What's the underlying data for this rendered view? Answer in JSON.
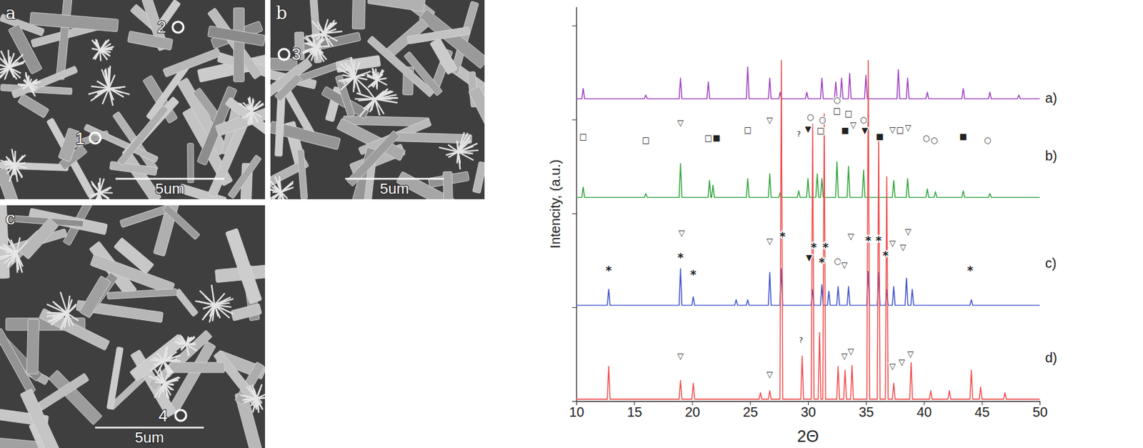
{
  "chart_data": {
    "type": "line",
    "x_label": "2Θ",
    "y_label": "Intencity, (a.u.)",
    "xlim": [
      10,
      50
    ],
    "xticks": [
      10,
      15,
      20,
      25,
      30,
      35,
      40,
      45,
      50
    ],
    "ylim": [
      0,
      4.2
    ],
    "yticks": [
      0,
      1,
      2,
      3,
      4
    ],
    "tick_labels": "x",
    "grid": false,
    "series": [
      {
        "name": "a)",
        "color": "#9c3cc0",
        "x": [
          10,
          10.48,
          10.6,
          10.72,
          15.88,
          16.0,
          16.12,
          18.88,
          19.0,
          19.12,
          21.28,
          21.4,
          21.52,
          24.68,
          24.8,
          24.92,
          26.58,
          26.7,
          26.82,
          27.48,
          27.6,
          27.72,
          29.78,
          29.9,
          30.02,
          31.08,
          31.2,
          31.32,
          32.28,
          32.4,
          32.52,
          32.78,
          32.9,
          33.02,
          33.48,
          33.6,
          33.72,
          34.88,
          35.0,
          35.12,
          37.68,
          37.8,
          37.92,
          38.48,
          38.6,
          38.72,
          40.18,
          40.3,
          40.42,
          43.28,
          43.4,
          43.52,
          45.58,
          45.7,
          45.82,
          48.08,
          48.2,
          48.32,
          50
        ],
        "values": [
          3.22,
          3.22,
          3.33,
          3.22,
          3.22,
          3.26,
          3.22,
          3.22,
          3.44,
          3.22,
          3.22,
          3.4,
          3.22,
          3.22,
          3.56,
          3.22,
          3.22,
          3.44,
          3.22,
          3.22,
          3.29,
          3.22,
          3.22,
          3.29,
          3.22,
          3.22,
          3.44,
          3.22,
          3.22,
          3.4,
          3.22,
          3.22,
          3.44,
          3.22,
          3.22,
          3.49,
          3.22,
          3.22,
          3.47,
          3.22,
          3.22,
          3.53,
          3.22,
          3.22,
          3.44,
          3.22,
          3.22,
          3.29,
          3.22,
          3.22,
          3.33,
          3.22,
          3.22,
          3.29,
          3.22,
          3.22,
          3.26,
          3.22,
          3.22
        ]
      },
      {
        "name": "b)",
        "color": "#2ea33a",
        "x": [
          10,
          10.48,
          10.6,
          10.72,
          15.88,
          16.0,
          16.12,
          18.88,
          19.0,
          19.12,
          21.38,
          21.5,
          21.62,
          21.68,
          21.8,
          21.92,
          24.68,
          24.8,
          24.92,
          26.58,
          26.7,
          26.82,
          27.48,
          27.6,
          27.72,
          29.08,
          29.2,
          29.32,
          29.88,
          30.0,
          30.12,
          30.68,
          30.8,
          30.92,
          31.08,
          31.2,
          31.32,
          32.38,
          32.5,
          32.62,
          33.38,
          33.5,
          33.62,
          34.68,
          34.8,
          34.92,
          37.28,
          37.4,
          37.52,
          38.48,
          38.6,
          38.72,
          40.18,
          40.3,
          40.42,
          40.88,
          41.0,
          41.12,
          43.28,
          43.4,
          43.52,
          45.58,
          45.7,
          45.82,
          50
        ],
        "values": [
          2.17,
          2.17,
          2.28,
          2.17,
          2.17,
          2.21,
          2.17,
          2.17,
          2.53,
          2.17,
          2.17,
          2.35,
          2.17,
          2.17,
          2.3,
          2.17,
          2.17,
          2.37,
          2.17,
          2.17,
          2.42,
          2.17,
          2.17,
          2.22,
          2.17,
          2.17,
          2.24,
          2.17,
          2.17,
          2.37,
          2.17,
          2.17,
          2.42,
          2.17,
          2.17,
          2.37,
          2.17,
          2.17,
          2.55,
          2.17,
          2.17,
          2.5,
          2.17,
          2.17,
          2.46,
          2.17,
          2.17,
          2.35,
          2.17,
          2.17,
          2.37,
          2.17,
          2.17,
          2.26,
          2.17,
          2.17,
          2.23,
          2.17,
          2.17,
          2.24,
          2.17,
          2.17,
          2.21,
          2.17,
          2.17
        ]
      },
      {
        "name": "c)",
        "color": "#3a4fcc",
        "x": [
          10,
          12.68,
          12.8,
          12.92,
          18.88,
          19.0,
          19.12,
          19.98,
          20.1,
          20.22,
          23.68,
          23.8,
          23.92,
          24.68,
          24.8,
          24.92,
          26.58,
          26.7,
          26.82,
          27.58,
          27.7,
          27.82,
          30.28,
          30.4,
          30.52,
          31.08,
          31.2,
          31.32,
          31.68,
          31.8,
          31.92,
          32.48,
          32.6,
          32.72,
          33.38,
          33.5,
          33.62,
          35.08,
          35.2,
          35.32,
          35.98,
          36.1,
          36.22,
          36.68,
          36.8,
          36.92,
          37.28,
          37.4,
          37.52,
          38.38,
          38.5,
          38.62,
          38.88,
          39.0,
          39.12,
          43.98,
          44.1,
          44.22,
          50
        ],
        "values": [
          1.02,
          1.02,
          1.19,
          1.02,
          1.02,
          1.41,
          1.02,
          1.02,
          1.11,
          1.02,
          1.02,
          1.08,
          1.02,
          1.02,
          1.08,
          1.02,
          1.02,
          1.37,
          1.02,
          1.02,
          1.41,
          1.02,
          1.02,
          1.19,
          1.02,
          1.02,
          1.24,
          1.02,
          1.02,
          1.17,
          1.02,
          1.02,
          1.22,
          1.02,
          1.02,
          1.22,
          1.02,
          1.02,
          1.38,
          1.02,
          1.02,
          1.37,
          1.02,
          1.02,
          1.19,
          1.02,
          1.02,
          1.22,
          1.02,
          1.02,
          1.31,
          1.02,
          1.02,
          1.19,
          1.02,
          1.02,
          1.08,
          1.02,
          1.02
        ]
      },
      {
        "name": "d)",
        "color": "#f04848",
        "x": [
          10,
          12.68,
          12.8,
          12.92,
          18.88,
          19.0,
          19.12,
          19.98,
          20.1,
          20.22,
          25.78,
          25.9,
          26.02,
          26.58,
          26.7,
          26.82,
          27.58,
          27.7,
          27.82,
          29.38,
          29.5,
          29.62,
          30.28,
          30.4,
          30.52,
          30.88,
          31.0,
          31.12,
          31.28,
          31.4,
          31.52,
          32.48,
          32.6,
          32.72,
          33.08,
          33.2,
          33.32,
          33.68,
          33.8,
          33.92,
          35.08,
          35.2,
          35.32,
          35.98,
          36.1,
          36.22,
          36.68,
          36.8,
          36.92,
          37.28,
          37.4,
          37.52,
          38.78,
          38.9,
          39.02,
          40.48,
          40.6,
          40.72,
          42.08,
          42.2,
          42.32,
          43.98,
          44.1,
          44.22,
          44.78,
          44.9,
          45.02,
          46.88,
          47.0,
          47.12,
          50
        ],
        "values": [
          0.02,
          0.02,
          0.37,
          0.02,
          0.02,
          0.22,
          0.02,
          0.02,
          0.19,
          0.02,
          0.02,
          0.09,
          0.02,
          0.02,
          0.11,
          0.02,
          0.02,
          3.63,
          0.02,
          0.02,
          0.48,
          0.02,
          0.02,
          2.95,
          0.02,
          0.02,
          0.73,
          0.02,
          0.02,
          3.06,
          0.02,
          0.02,
          0.37,
          0.02,
          0.02,
          0.33,
          0.02,
          0.02,
          0.38,
          0.02,
          0.02,
          3.63,
          0.02,
          0.02,
          2.84,
          0.02,
          0.02,
          2.39,
          0.02,
          0.02,
          0.19,
          0.02,
          0.02,
          0.41,
          0.02,
          0.02,
          0.11,
          0.02,
          0.02,
          0.11,
          0.02,
          0.02,
          0.33,
          0.02,
          0.02,
          0.15,
          0.02,
          0.02,
          0.09,
          0.02,
          0.02
        ]
      }
    ],
    "annotations": [
      {
        "text": "□",
        "x": 10.6,
        "y": 2.82
      },
      {
        "text": "□",
        "x": 16.0,
        "y": 2.78
      },
      {
        "text": "▽",
        "x": 19.0,
        "y": 2.96
      },
      {
        "text": "□",
        "x": 21.4,
        "y": 2.8
      },
      {
        "text": "■",
        "x": 22.1,
        "y": 2.8
      },
      {
        "text": "□",
        "x": 24.8,
        "y": 2.89
      },
      {
        "text": "▽",
        "x": 26.7,
        "y": 2.99
      },
      {
        "text": "?",
        "x": 29.2,
        "y": 2.84
      },
      {
        "text": "▼",
        "x": 30.0,
        "y": 2.9
      },
      {
        "text": "○",
        "x": 30.2,
        "y": 3.03
      },
      {
        "text": "□",
        "x": 31.1,
        "y": 2.88
      },
      {
        "text": "○",
        "x": 31.25,
        "y": 3.0
      },
      {
        "text": "□",
        "x": 32.5,
        "y": 3.09
      },
      {
        "text": "○",
        "x": 32.5,
        "y": 3.21
      },
      {
        "text": "■",
        "x": 33.2,
        "y": 2.88
      },
      {
        "text": "□",
        "x": 33.5,
        "y": 3.06
      },
      {
        "text": "▽",
        "x": 33.9,
        "y": 2.94
      },
      {
        "text": "▼",
        "x": 34.9,
        "y": 2.88
      },
      {
        "text": "○",
        "x": 34.8,
        "y": 3.0
      },
      {
        "text": "■",
        "x": 36.2,
        "y": 2.82
      },
      {
        "text": "▽",
        "x": 37.3,
        "y": 2.89
      },
      {
        "text": "□",
        "x": 37.95,
        "y": 2.89
      },
      {
        "text": "▽",
        "x": 38.65,
        "y": 2.91
      },
      {
        "text": "○",
        "x": 40.2,
        "y": 2.8
      },
      {
        "text": "○",
        "x": 40.9,
        "y": 2.78
      },
      {
        "text": "■",
        "x": 43.4,
        "y": 2.82
      },
      {
        "text": "○",
        "x": 45.5,
        "y": 2.78
      },
      {
        "text": "*",
        "x": 12.8,
        "y": 1.39
      },
      {
        "text": "*",
        "x": 19.0,
        "y": 1.53
      },
      {
        "text": "▽",
        "x": 19.1,
        "y": 1.79
      },
      {
        "text": "*",
        "x": 20.1,
        "y": 1.35
      },
      {
        "text": "▽",
        "x": 26.7,
        "y": 1.7
      },
      {
        "text": "*",
        "x": 27.8,
        "y": 1.75
      },
      {
        "text": "▼",
        "x": 30.1,
        "y": 1.53
      },
      {
        "text": "*",
        "x": 30.5,
        "y": 1.64
      },
      {
        "text": "*",
        "x": 31.2,
        "y": 1.48
      },
      {
        "text": "*",
        "x": 31.5,
        "y": 1.64
      },
      {
        "text": "○",
        "x": 32.55,
        "y": 1.49
      },
      {
        "text": "▽",
        "x": 33.15,
        "y": 1.45
      },
      {
        "text": "▽",
        "x": 33.7,
        "y": 1.75
      },
      {
        "text": "*",
        "x": 35.2,
        "y": 1.71
      },
      {
        "text": "*",
        "x": 36.1,
        "y": 1.71
      },
      {
        "text": "*",
        "x": 36.7,
        "y": 1.55
      },
      {
        "text": "▽",
        "x": 37.3,
        "y": 1.68
      },
      {
        "text": "▽",
        "x": 38.2,
        "y": 1.64
      },
      {
        "text": "▽",
        "x": 38.65,
        "y": 1.8
      },
      {
        "text": "*",
        "x": 44.0,
        "y": 1.39
      },
      {
        "text": "▽",
        "x": 19.0,
        "y": 0.48
      },
      {
        "text": "▽",
        "x": 26.7,
        "y": 0.28
      },
      {
        "text": "?",
        "x": 29.4,
        "y": 0.65
      },
      {
        "text": "▽",
        "x": 33.15,
        "y": 0.48
      },
      {
        "text": "▽",
        "x": 33.7,
        "y": 0.53
      },
      {
        "text": "▽",
        "x": 37.3,
        "y": 0.37
      },
      {
        "text": "▽",
        "x": 38.1,
        "y": 0.41
      },
      {
        "text": "▽",
        "x": 38.85,
        "y": 0.5
      }
    ]
  },
  "sem_images": [
    {
      "letter": "a",
      "markers": [
        "2",
        "1"
      ],
      "scale_bar": "5um"
    },
    {
      "letter": "b",
      "markers": [
        "3"
      ],
      "scale_bar": "5um"
    },
    {
      "letter": "c",
      "markers": [
        "4"
      ],
      "scale_bar": "5um"
    }
  ]
}
